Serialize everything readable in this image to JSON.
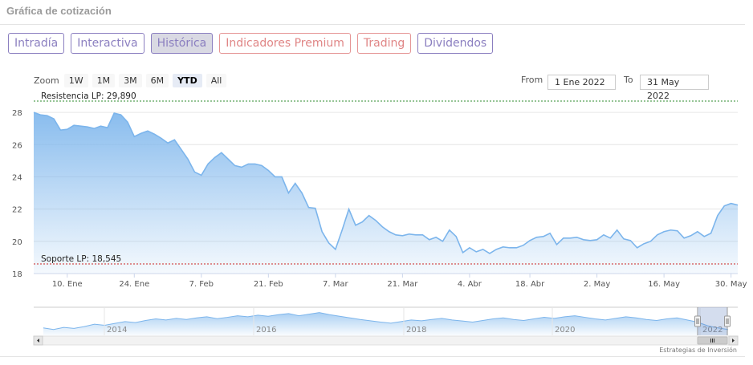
{
  "panel": {
    "title": "Gráfica de cotización"
  },
  "tabs": [
    {
      "label": "Intradía",
      "style": "purple",
      "active": false
    },
    {
      "label": "Interactiva",
      "style": "purple",
      "active": false
    },
    {
      "label": "Histórica",
      "style": "purple",
      "active": true
    },
    {
      "label": "Indicadores Premium",
      "style": "red",
      "active": false
    },
    {
      "label": "Trading",
      "style": "red",
      "active": false
    },
    {
      "label": "Dividendos",
      "style": "purple",
      "active": false
    }
  ],
  "zoom": {
    "label": "Zoom",
    "buttons": [
      "1W",
      "1M",
      "3M",
      "6M",
      "YTD",
      "All"
    ],
    "selected": "YTD"
  },
  "range": {
    "from_label": "From",
    "from_value": "1 Ene 2022",
    "to_label": "To",
    "to_value": "31 May 2022"
  },
  "credit": "Estrategias de Inversión",
  "colors": {
    "series": "#7cb5ec",
    "resistance": "#2e8b2e",
    "support": "#cc2222"
  },
  "chart_data": {
    "type": "area",
    "title": "",
    "x": [
      "3 Ene",
      "4 Ene",
      "5 Ene",
      "6 Ene",
      "7 Ene",
      "10 Ene",
      "11 Ene",
      "12 Ene",
      "13 Ene",
      "14 Ene",
      "17 Ene",
      "18 Ene",
      "19 Ene",
      "20 Ene",
      "21 Ene",
      "24 Ene",
      "25 Ene",
      "26 Ene",
      "27 Ene",
      "28 Ene",
      "31 Ene",
      "1 Feb",
      "2 Feb",
      "3 Feb",
      "4 Feb",
      "7 Feb",
      "8 Feb",
      "9 Feb",
      "10 Feb",
      "11 Feb",
      "14 Feb",
      "15 Feb",
      "16 Feb",
      "17 Feb",
      "18 Feb",
      "21 Feb",
      "22 Feb",
      "23 Feb",
      "24 Feb",
      "25 Feb",
      "28 Feb",
      "1 Mar",
      "2 Mar",
      "3 Mar",
      "4 Mar",
      "7 Mar",
      "8 Mar",
      "9 Mar",
      "10 Mar",
      "11 Mar",
      "14 Mar",
      "15 Mar",
      "16 Mar",
      "17 Mar",
      "18 Mar",
      "21 Mar",
      "22 Mar",
      "23 Mar",
      "24 Mar",
      "25 Mar",
      "28 Mar",
      "29 Mar",
      "30 Mar",
      "31 Mar",
      "1 Abr",
      "4 Abr",
      "5 Abr",
      "6 Abr",
      "7 Abr",
      "8 Abr",
      "11 Abr",
      "12 Abr",
      "13 Abr",
      "14 Abr",
      "18 Abr",
      "19 Abr",
      "20 Abr",
      "21 Abr",
      "22 Abr",
      "25 Abr",
      "26 Abr",
      "27 Abr",
      "28 Abr",
      "29 Abr",
      "2 May",
      "3 May",
      "4 May",
      "5 May",
      "6 May",
      "9 May",
      "10 May",
      "11 May",
      "12 May",
      "13 May",
      "16 May",
      "17 May",
      "18 May",
      "19 May",
      "20 May",
      "23 May",
      "24 May",
      "25 May",
      "26 May",
      "27 May",
      "30 May",
      "31 May"
    ],
    "series": [
      {
        "values": [
          28.0,
          27.85,
          27.8,
          27.6,
          26.9,
          26.95,
          27.2,
          27.15,
          27.1,
          27.0,
          27.15,
          27.05,
          27.95,
          27.85,
          27.4,
          26.5,
          26.7,
          26.85,
          26.65,
          26.4,
          26.1,
          26.3,
          25.7,
          25.1,
          24.3,
          24.1,
          24.8,
          25.2,
          25.5,
          25.1,
          24.7,
          24.6,
          24.8,
          24.8,
          24.7,
          24.4,
          24.0,
          24.0,
          23.0,
          23.6,
          23.0,
          22.1,
          22.05,
          20.6,
          19.9,
          19.5,
          20.7,
          22.0,
          21.0,
          21.2,
          21.6,
          21.3,
          20.9,
          20.6,
          20.4,
          20.35,
          20.45,
          20.4,
          20.4,
          20.1,
          20.25,
          20.0,
          20.7,
          20.3,
          19.3,
          19.6,
          19.35,
          19.5,
          19.25,
          19.5,
          19.65,
          19.6,
          19.6,
          19.75,
          20.05,
          20.25,
          20.3,
          20.5,
          19.8,
          20.2,
          20.2,
          20.25,
          20.1,
          20.05,
          20.1,
          20.4,
          20.2,
          20.7,
          20.15,
          20.05,
          19.6,
          19.85,
          20.0,
          20.4,
          20.6,
          20.7,
          20.65,
          20.2,
          20.35,
          20.6,
          20.3,
          20.5,
          21.6,
          22.2,
          22.35,
          22.25
        ]
      }
    ],
    "ylim": [
      18,
      29.2
    ],
    "yticks": [
      18,
      20,
      22,
      24,
      26,
      28
    ],
    "xtick_labels": [
      "10. Ene",
      "24. Ene",
      "7. Feb",
      "21. Feb",
      "7. Mar",
      "21. Mar",
      "4. Abr",
      "18. Abr",
      "2. May",
      "16. May",
      "30. May"
    ],
    "annotations": [
      {
        "label": "Resistencia LP: 29,890",
        "value": 29.89,
        "color": "#2e8b2e"
      },
      {
        "label": "Soporte LP: 18,545",
        "value": 18.545,
        "color": "#cc2222"
      }
    ],
    "navigator": {
      "year_labels": [
        "2014",
        "2016",
        "2018",
        "2020",
        "2022"
      ],
      "values": [
        0.28,
        0.22,
        0.3,
        0.26,
        0.33,
        0.42,
        0.38,
        0.45,
        0.52,
        0.48,
        0.56,
        0.62,
        0.58,
        0.64,
        0.6,
        0.66,
        0.7,
        0.63,
        0.68,
        0.74,
        0.7,
        0.76,
        0.72,
        0.78,
        0.82,
        0.74,
        0.8,
        0.86,
        0.78,
        0.72,
        0.66,
        0.6,
        0.55,
        0.5,
        0.46,
        0.52,
        0.58,
        0.55,
        0.6,
        0.64,
        0.58,
        0.54,
        0.5,
        0.56,
        0.62,
        0.66,
        0.6,
        0.56,
        0.62,
        0.68,
        0.64,
        0.7,
        0.74,
        0.68,
        0.62,
        0.58,
        0.64,
        0.7,
        0.66,
        0.6,
        0.56,
        0.62,
        0.66,
        0.58,
        0.5,
        0.36,
        0.28,
        0.22
      ],
      "selection": "YTD"
    }
  }
}
